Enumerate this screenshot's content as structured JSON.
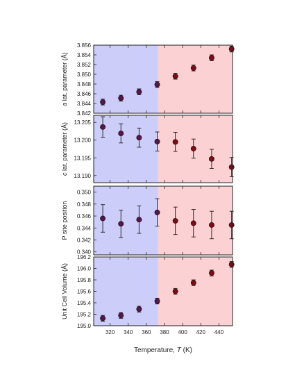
{
  "chart_data": {
    "type": "scatter",
    "x_label_parts": [
      "Temperature, ",
      "T",
      " (K)"
    ],
    "x_ticks": [
      320,
      340,
      360,
      380,
      400,
      420,
      440
    ],
    "xlim": [
      302,
      455
    ],
    "regions": [
      {
        "from": 302,
        "to": 373,
        "color": "#cccdf8"
      },
      {
        "from": 373,
        "to": 455,
        "color": "#fcd1d3"
      }
    ],
    "point_colors": {
      "low": "#4f1850",
      "high": "#7d0d14"
    },
    "x": [
      312,
      332,
      352,
      372,
      392,
      412,
      432,
      454
    ],
    "panels": [
      {
        "ylabel_parts": [
          "",
          "a",
          " lat. parameter (Å)"
        ],
        "ylim": [
          3.842,
          3.856
        ],
        "y_ticks": [
          "3.842",
          "3.844",
          "3.846",
          "3.848",
          "3.850",
          "3.852",
          "3.854",
          "3.856"
        ],
        "values": [
          3.8443,
          3.8451,
          3.8464,
          3.8479,
          3.8496,
          3.8513,
          3.8534,
          3.8552
        ],
        "errors": [
          0.0006,
          0.0006,
          0.0006,
          0.0006,
          0.0006,
          0.0006,
          0.0006,
          0.0006
        ]
      },
      {
        "ylabel_parts": [
          "",
          "c",
          " lat. parameter (Å)"
        ],
        "ylim": [
          13.188,
          13.207
        ],
        "y_ticks": [
          "13.190",
          "13.195",
          "13.200",
          "13.205"
        ],
        "values": [
          13.2037,
          13.2019,
          13.2007,
          13.1996,
          13.1995,
          13.1976,
          13.1947,
          13.1924
        ],
        "errors": [
          0.0029,
          0.0027,
          0.0027,
          0.0027,
          0.0027,
          0.0027,
          0.0027,
          0.0027
        ]
      },
      {
        "ylabel_parts": [
          "P site position",
          "",
          ""
        ],
        "ylim": [
          0.3395,
          0.351
        ],
        "y_ticks": [
          "0.340",
          "0.342",
          "0.344",
          "0.346",
          "0.348",
          "0.350"
        ],
        "values": [
          0.3456,
          0.3447,
          0.3454,
          0.3466,
          0.3452,
          0.3448,
          0.3445,
          0.3445
        ],
        "errors": [
          0.0023,
          0.0023,
          0.0023,
          0.0023,
          0.0023,
          0.0023,
          0.0023,
          0.0023
        ]
      },
      {
        "ylabel_parts": [
          "Unit Cell Volume (Å)",
          "",
          ""
        ],
        "ylim": [
          195.0,
          196.2
        ],
        "y_ticks": [
          "195.0",
          "195.2",
          "195.4",
          "195.6",
          "195.8",
          "196.0",
          "196.2"
        ],
        "values": [
          195.13,
          195.18,
          195.29,
          195.43,
          195.6,
          195.75,
          195.92,
          196.07
        ],
        "errors": [
          0.05,
          0.05,
          0.05,
          0.05,
          0.05,
          0.05,
          0.05,
          0.05
        ]
      }
    ]
  }
}
